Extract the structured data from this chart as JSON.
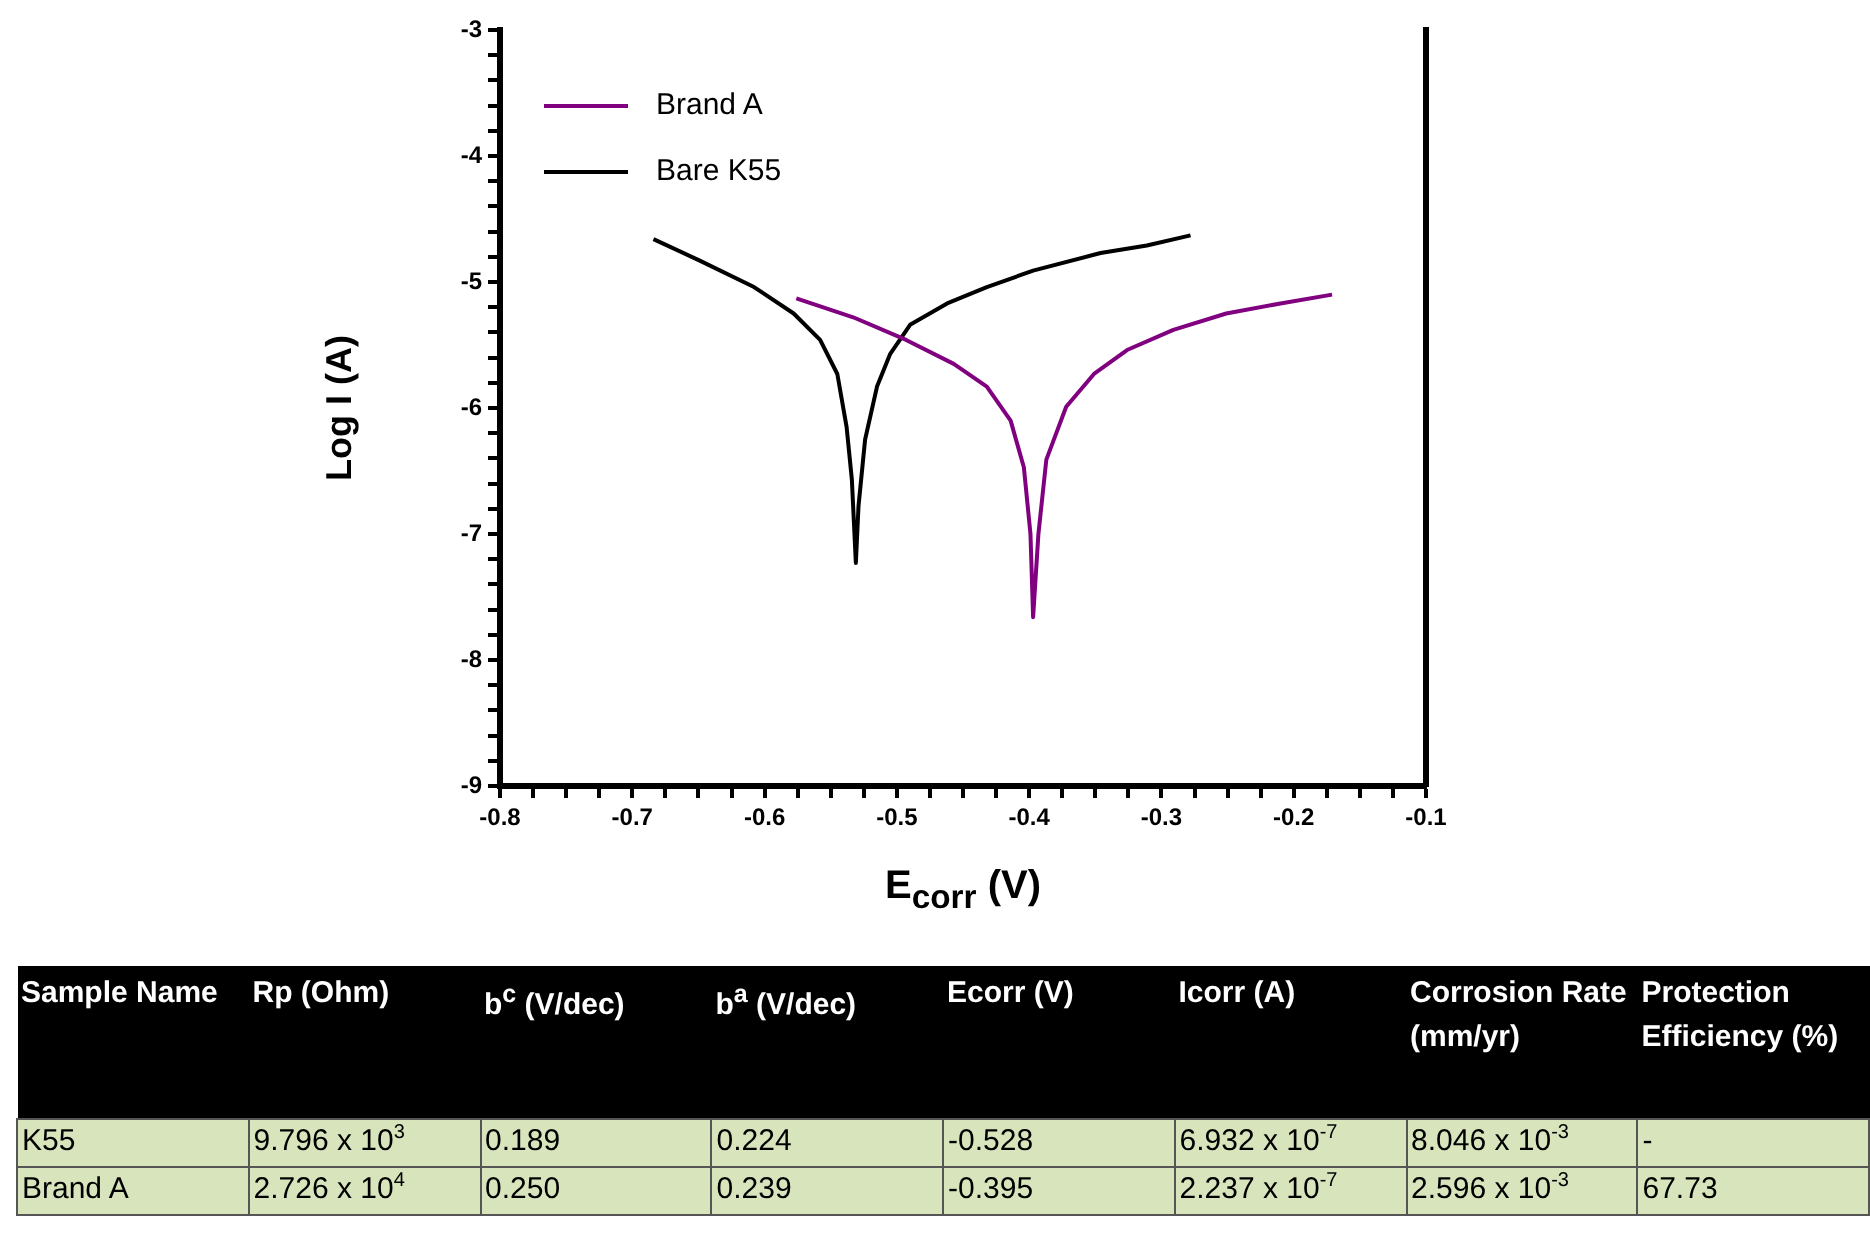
{
  "chart_data": [
    {
      "type": "line",
      "xlabel": "E$_{corr}$ (V)",
      "ylabel": "Log I (A)",
      "legend": "top left",
      "grid": false,
      "marker": "none",
      "line_style": "solid",
      "xlim": [
        -0.8,
        -0.1
      ],
      "ylim": [
        -9,
        -3
      ],
      "xticks": [
        -0.8,
        {
          "value": -0.775,
          "label": null
        },
        {
          "value": -0.75,
          "label": null
        },
        {
          "value": -0.725,
          "label": null
        },
        -0.7,
        {
          "value": -0.675,
          "label": null
        },
        {
          "value": -0.65,
          "label": null
        },
        {
          "value": -0.625,
          "label": null
        },
        -0.6,
        {
          "value": -0.575,
          "label": null
        },
        {
          "value": -0.55,
          "label": null
        },
        {
          "value": -0.525,
          "label": null
        },
        -0.5,
        {
          "value": -0.475,
          "label": null
        },
        {
          "value": -0.45,
          "label": null
        },
        {
          "value": -0.425,
          "label": null
        },
        -0.4,
        {
          "value": -0.375,
          "label": null
        },
        {
          "value": -0.35,
          "label": null
        },
        {
          "value": -0.325,
          "label": null
        },
        -0.3,
        {
          "value": -0.275,
          "label": null
        },
        {
          "value": -0.25,
          "label": null
        },
        {
          "value": -0.225,
          "label": null
        },
        -0.2,
        {
          "value": -0.175,
          "label": null
        },
        {
          "value": -0.15,
          "label": null
        },
        {
          "value": -0.125,
          "label": null
        },
        -0.1
      ],
      "yticks": [
        -9,
        {
          "value": -8.8,
          "label": null
        },
        {
          "value": -8.6,
          "label": null
        },
        {
          "value": -8.4,
          "label": null
        },
        {
          "value": -8.2,
          "label": null
        },
        -8,
        {
          "value": -7.8,
          "label": null
        },
        {
          "value": -7.6,
          "label": null
        },
        {
          "value": -7.4,
          "label": null
        },
        {
          "value": -7.2,
          "label": null
        },
        -7,
        {
          "value": -6.8,
          "label": null
        },
        {
          "value": -6.6,
          "label": null
        },
        {
          "value": -6.4,
          "label": null
        },
        {
          "value": -6.2,
          "label": null
        },
        -6,
        {
          "value": -5.8,
          "label": null
        },
        {
          "value": -5.6,
          "label": null
        },
        {
          "value": -5.4,
          "label": null
        },
        {
          "value": -5.2,
          "label": null
        },
        -5,
        {
          "value": -4.8,
          "label": null
        },
        {
          "value": -4.6,
          "label": null
        },
        {
          "value": -4.4,
          "label": null
        },
        {
          "value": -4.2,
          "label": null
        },
        -4,
        {
          "value": -3.8,
          "label": null
        },
        {
          "value": -3.6,
          "label": null
        },
        {
          "value": -3.4,
          "label": null
        },
        {
          "value": -3.2,
          "label": null
        },
        -3
      ],
      "series": [
        {
          "name": "Brand A",
          "color": "#800080",
          "x": [
            -0.576,
            -0.533,
            -0.493,
            -0.457,
            -0.432,
            -0.414,
            -0.404,
            -0.399,
            -0.397,
            -0.393,
            -0.387,
            -0.372,
            -0.351,
            -0.326,
            -0.291,
            -0.251,
            -0.21,
            -0.171
          ],
          "values": [
            -5.13,
            -5.28,
            -5.46,
            -5.65,
            -5.83,
            -6.1,
            -6.47,
            -7.0,
            -7.66,
            -7.0,
            -6.41,
            -5.99,
            -5.73,
            -5.54,
            -5.38,
            -5.25,
            -5.17,
            -5.1
          ]
        },
        {
          "name": "Bare K55",
          "color": "#000000",
          "x": [
            -0.684,
            -0.649,
            -0.608,
            -0.578,
            -0.558,
            -0.545,
            -0.538,
            -0.534,
            -0.531,
            -0.529,
            -0.524,
            -0.515,
            -0.505,
            -0.49,
            -0.462,
            -0.432,
            -0.397,
            -0.346,
            -0.311,
            -0.278
          ],
          "values": [
            -4.66,
            -4.83,
            -5.04,
            -5.25,
            -5.46,
            -5.73,
            -6.15,
            -6.57,
            -7.23,
            -6.78,
            -6.25,
            -5.83,
            -5.57,
            -5.34,
            -5.17,
            -5.04,
            -4.91,
            -4.77,
            -4.71,
            -4.63
          ]
        }
      ]
    },
    {
      "type": "other",
      "categories": [
        "Sample Name",
        "Rp (Ohm)",
        "b$^{c}$ (V/dec)",
        "b$^{a}$ (V/dec)",
        "Ecorr (V)",
        "Icorr (A)",
        "Corrosion Rate (mm/yr)",
        "Protection Efficiency (%)"
      ],
      "annotations": [
        "K55",
        "9.796 x 10$^{3}$",
        "0.189",
        "0.224",
        "-0.528",
        "6.932 x 10$^{-7}$",
        "8.046 x 10$^{-3}$",
        "-",
        "Brand A",
        "2.726 x 10$^{4}$",
        "0.250",
        "0.239",
        "-0.395",
        "2.237 x 10$^{-7}$",
        "2.596 x 10$^{-3}$",
        "67.73"
      ]
    }
  ]
}
